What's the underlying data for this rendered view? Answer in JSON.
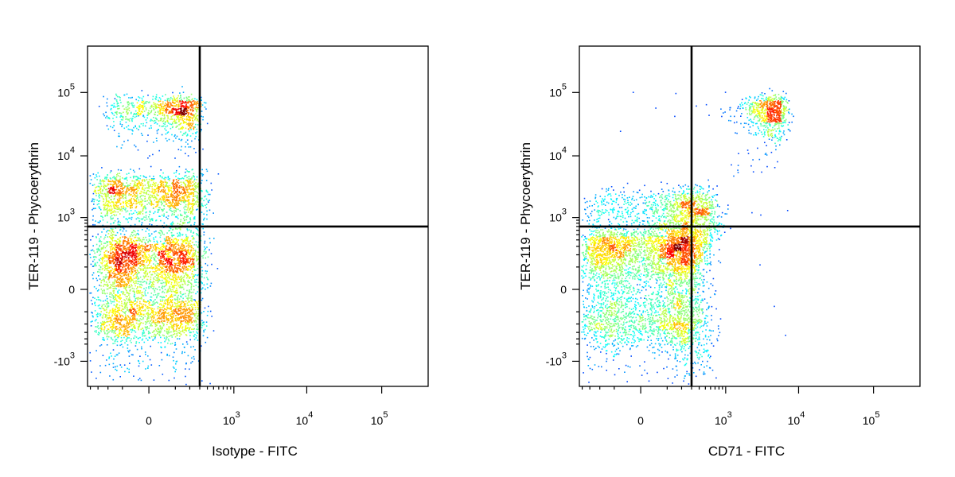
{
  "chart_data": [
    {
      "type": "scatter",
      "style": "density",
      "xlabel": "Isotype - FITC",
      "ylabel": "TER-119 - Phycoerythrin",
      "x_scale": "biexponential",
      "y_scale": "biexponential",
      "x_ticks": [
        {
          "value": 0,
          "label": "0",
          "sup": ""
        },
        {
          "value": 1000,
          "label": "10",
          "sup": "3"
        },
        {
          "value": 10000,
          "label": "10",
          "sup": "4"
        },
        {
          "value": 100000,
          "label": "10",
          "sup": "5"
        }
      ],
      "y_ticks": [
        {
          "value": -1000,
          "label": "-10",
          "sup": "3"
        },
        {
          "value": 0,
          "label": "0",
          "sup": ""
        },
        {
          "value": 1000,
          "label": "10",
          "sup": "3"
        },
        {
          "value": 10000,
          "label": "10",
          "sup": "4"
        },
        {
          "value": 100000,
          "label": "10",
          "sup": "5"
        }
      ],
      "quadrant_gate": {
        "x": 300,
        "y": 700
      },
      "populations": [
        {
          "x_center": 0,
          "x_spread": 150,
          "y_center": 50,
          "y_spread": 200,
          "weight": 0.55
        },
        {
          "x_center": 0,
          "x_spread": 160,
          "y_center": 2000,
          "y_spread": 1500,
          "weight": 0.3
        },
        {
          "x_center": 80,
          "x_spread": 120,
          "y_center": 50000,
          "y_spread": 20000,
          "weight": 0.15
        }
      ]
    },
    {
      "type": "scatter",
      "style": "density",
      "xlabel": "CD71 - FITC",
      "ylabel": "TER-119 - Phycoerythrin",
      "x_scale": "biexponential",
      "y_scale": "biexponential",
      "x_ticks": [
        {
          "value": 0,
          "label": "0",
          "sup": ""
        },
        {
          "value": 1000,
          "label": "10",
          "sup": "3"
        },
        {
          "value": 10000,
          "label": "10",
          "sup": "4"
        },
        {
          "value": 100000,
          "label": "10",
          "sup": "5"
        }
      ],
      "y_ticks": [
        {
          "value": -1000,
          "label": "-10",
          "sup": "3"
        },
        {
          "value": 0,
          "label": "0",
          "sup": ""
        },
        {
          "value": 1000,
          "label": "10",
          "sup": "3"
        },
        {
          "value": 10000,
          "label": "10",
          "sup": "4"
        },
        {
          "value": 100000,
          "label": "10",
          "sup": "5"
        }
      ],
      "quadrant_gate": {
        "x": 300,
        "y": 700
      },
      "populations": [
        {
          "x_center": 20,
          "x_spread": 200,
          "y_center": 100,
          "y_spread": 250,
          "weight": 0.6
        },
        {
          "x_center": 200,
          "x_spread": 250,
          "y_center": 800,
          "y_spread": 1000,
          "weight": 0.3
        },
        {
          "x_center": 4000,
          "x_spread": 1500,
          "y_center": 50000,
          "y_spread": 20000,
          "weight": 0.1
        }
      ]
    }
  ]
}
